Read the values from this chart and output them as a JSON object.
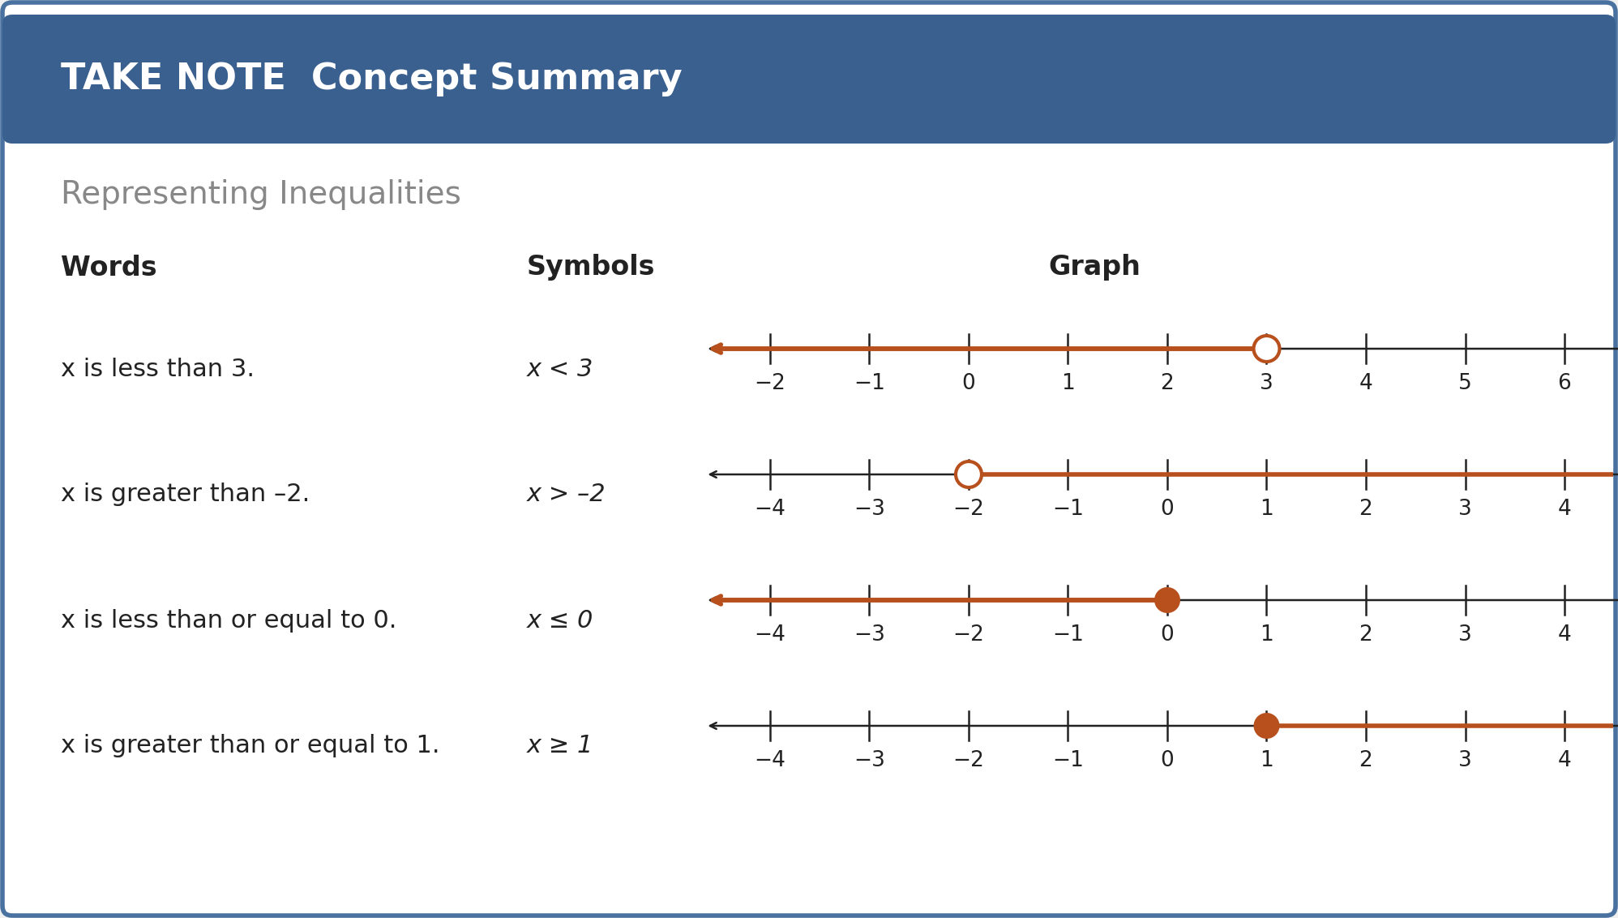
{
  "title": "TAKE NOTE  Concept Summary",
  "subtitle": "Representing Inequalities",
  "header_bg": "#3a6090",
  "header_text_color": "#ffffff",
  "body_bg": "#ffffff",
  "border_color": "#4a72a0",
  "subtitle_color": "#888888",
  "col_words": "Words",
  "col_symbols": "Symbols",
  "col_graph": "Graph",
  "rows": [
    {
      "words": "x is less than 3.",
      "symbol": "x < 3",
      "value": 3,
      "ticks": [
        -2,
        -1,
        0,
        1,
        2,
        3,
        4,
        5,
        6
      ],
      "highlight_left": true,
      "open": true
    },
    {
      "words": "x is greater than –2.",
      "symbol": "x > –2",
      "value": -2,
      "ticks": [
        -4,
        -3,
        -2,
        -1,
        0,
        1,
        2,
        3,
        4
      ],
      "highlight_left": false,
      "open": true
    },
    {
      "words": "x is less than or equal to 0.",
      "symbol": "x ≤ 0",
      "value": 0,
      "ticks": [
        -4,
        -3,
        -2,
        -1,
        0,
        1,
        2,
        3,
        4
      ],
      "highlight_left": true,
      "open": false
    },
    {
      "words": "x is greater than or equal to 1.",
      "symbol": "x ≥ 1",
      "value": 1,
      "ticks": [
        -4,
        -3,
        -2,
        -1,
        0,
        1,
        2,
        3,
        4
      ],
      "highlight_left": false,
      "open": false
    }
  ],
  "arrow_color": "#b8501e",
  "line_color": "#222222",
  "label_color": "#222222",
  "fig_width": 19.96,
  "fig_height": 11.32,
  "dpi": 100
}
